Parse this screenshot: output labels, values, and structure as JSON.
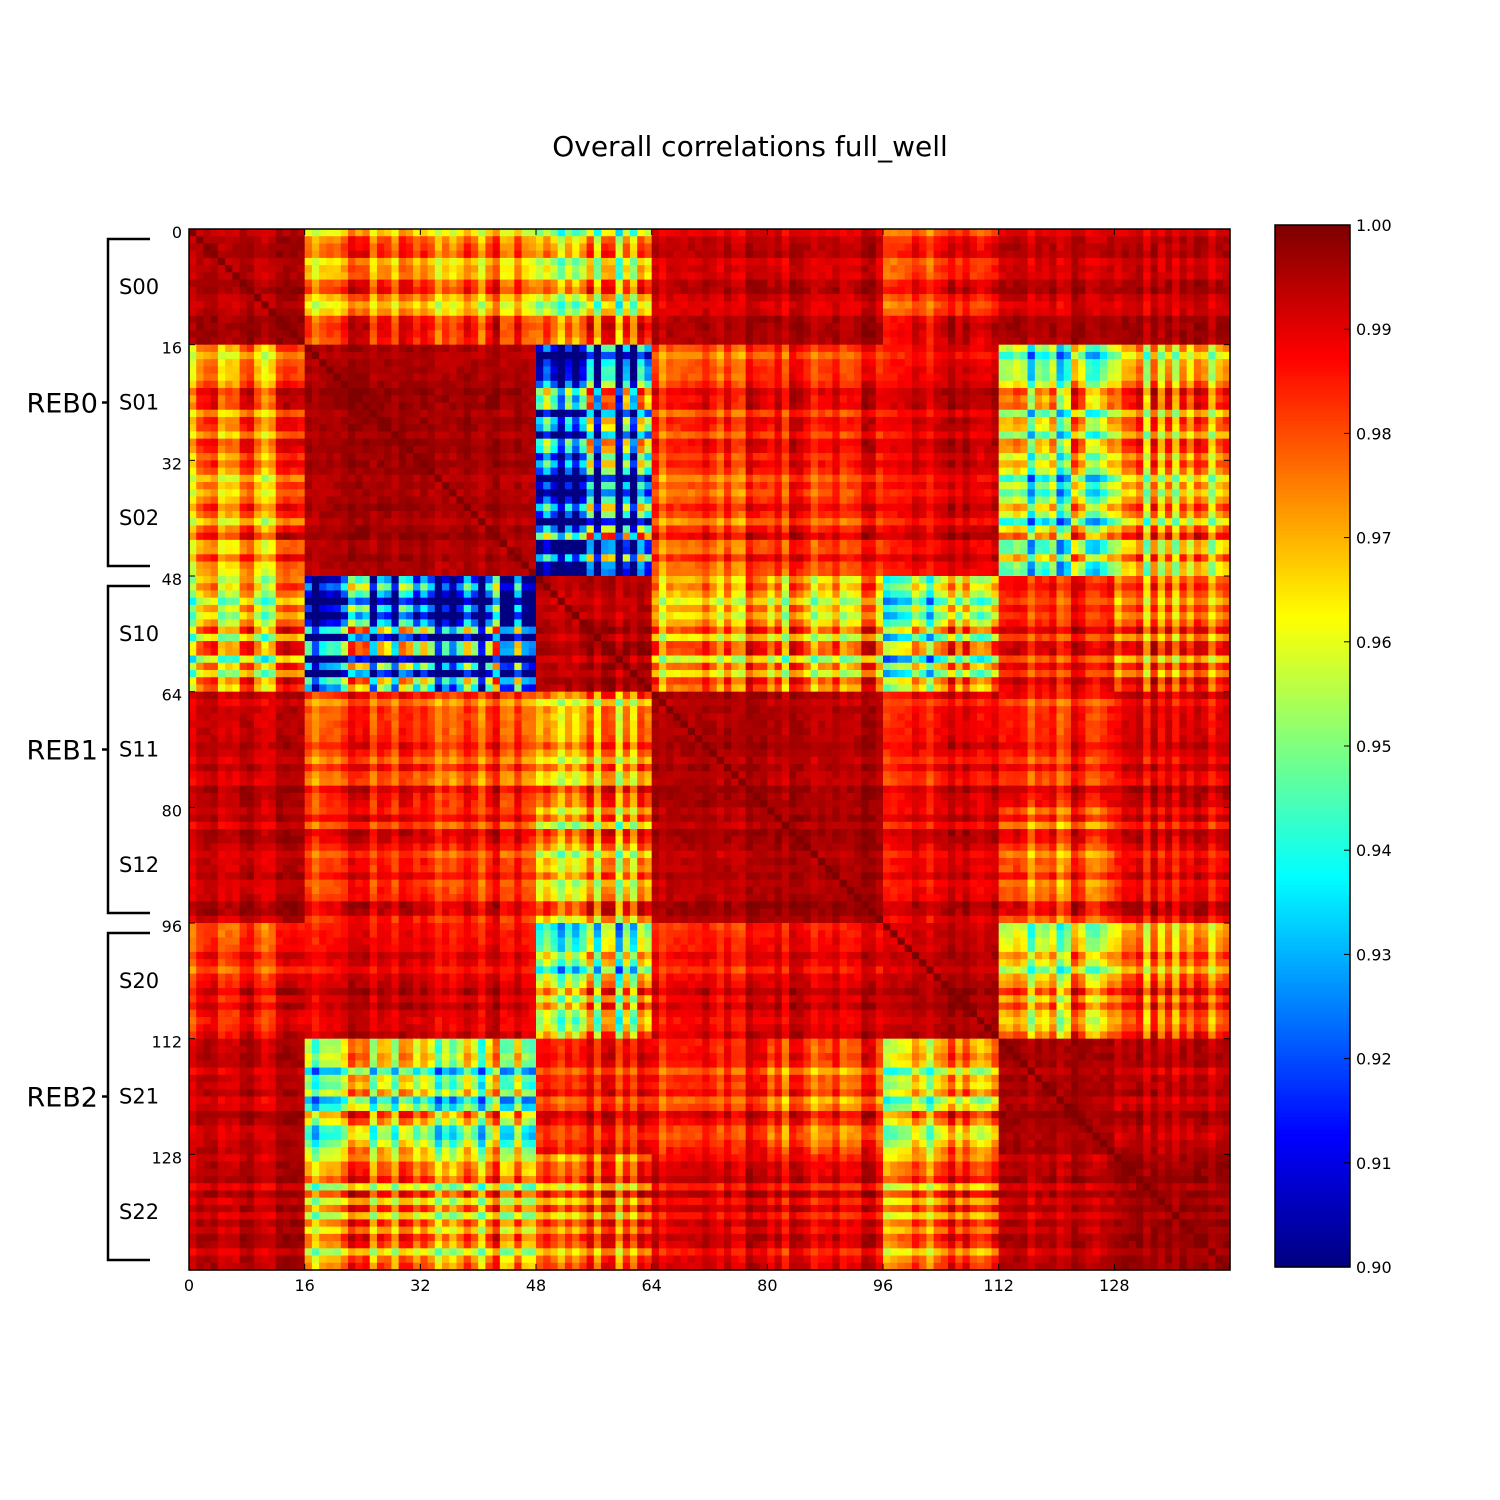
{
  "chart_data": {
    "type": "heatmap",
    "title": "Overall correlations full_well",
    "n": 144,
    "x_ticks": [
      "0",
      "16",
      "32",
      "48",
      "64",
      "80",
      "96",
      "112",
      "128"
    ],
    "y_ticks": [
      "0",
      "16",
      "32",
      "48",
      "64",
      "80",
      "96",
      "112",
      "128"
    ],
    "colorbar": {
      "colormap": "jet",
      "vmin": 0.9,
      "vmax": 1.0,
      "ticks": [
        "0.90",
        "0.91",
        "0.92",
        "0.93",
        "0.94",
        "0.95",
        "0.96",
        "0.97",
        "0.98",
        "0.99",
        "1.00"
      ]
    },
    "segments": [
      "S00",
      "S01",
      "S02",
      "S10",
      "S11",
      "S12",
      "S20",
      "S21",
      "S22"
    ],
    "groups": [
      "REB0",
      "REB1",
      "REB2"
    ],
    "segment_size": 16,
    "segment_mean_correlation": [
      [
        0.995,
        0.975,
        0.975,
        0.965,
        0.993,
        0.993,
        0.985,
        0.993,
        0.993
      ],
      [
        0.975,
        0.996,
        0.996,
        0.918,
        0.982,
        0.985,
        0.99,
        0.955,
        0.968
      ],
      [
        0.975,
        0.996,
        0.996,
        0.918,
        0.982,
        0.985,
        0.99,
        0.955,
        0.968
      ],
      [
        0.965,
        0.918,
        0.918,
        0.994,
        0.972,
        0.968,
        0.955,
        0.985,
        0.975
      ],
      [
        0.993,
        0.982,
        0.982,
        0.972,
        0.996,
        0.995,
        0.988,
        0.985,
        0.99
      ],
      [
        0.993,
        0.985,
        0.985,
        0.968,
        0.995,
        0.996,
        0.99,
        0.98,
        0.988
      ],
      [
        0.985,
        0.99,
        0.99,
        0.955,
        0.988,
        0.99,
        0.994,
        0.965,
        0.975
      ],
      [
        0.993,
        0.955,
        0.955,
        0.985,
        0.985,
        0.98,
        0.965,
        0.996,
        0.993
      ],
      [
        0.993,
        0.968,
        0.968,
        0.975,
        0.99,
        0.988,
        0.975,
        0.993,
        0.996
      ]
    ]
  }
}
